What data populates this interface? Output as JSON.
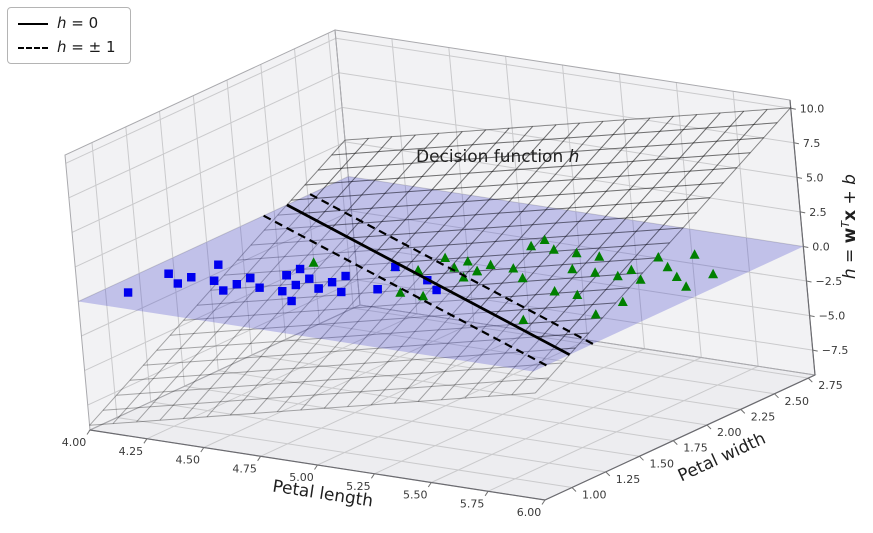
{
  "legend": {
    "items": [
      {
        "style": "solid",
        "var": "h",
        "rest": " = 0"
      },
      {
        "style": "dashed",
        "var": "h",
        "rest": " = ± 1"
      }
    ]
  },
  "annotation": {
    "prefix": "Decision function ",
    "var": "h"
  },
  "axes": {
    "x": {
      "label": "Petal length",
      "tick_labels": [
        "4.00",
        "4.25",
        "4.50",
        "4.75",
        "5.00",
        "5.25",
        "5.50",
        "5.75",
        "6.00"
      ],
      "tick_values": [
        4,
        4.25,
        4.5,
        4.75,
        5,
        5.25,
        5.5,
        5.75,
        6
      ],
      "lim": [
        4,
        6
      ]
    },
    "y": {
      "label": "Petal width",
      "tick_labels": [
        "1.00",
        "1.25",
        "1.50",
        "1.75",
        "2.00",
        "2.25",
        "2.50",
        "2.75"
      ],
      "tick_values": [
        1,
        1.25,
        1.5,
        1.75,
        2,
        2.25,
        2.5,
        2.75
      ],
      "lim": [
        0.8,
        2.8
      ]
    },
    "z": {
      "label_parts": {
        "h": "h",
        "eq": " = ",
        "w": "w",
        "sup": "T",
        "x": "x",
        "plus": " + ",
        "b": "b"
      },
      "tick_labels": [
        "−7.5",
        "−5.0",
        "−2.5",
        "0.0",
        "2.5",
        "5.0",
        "7.5",
        "10.0"
      ],
      "tick_values": [
        -7.5,
        -5,
        -2.5,
        0,
        2.5,
        5,
        7.5,
        10
      ],
      "lim": [
        -9.3,
        10.6
      ]
    }
  },
  "chart_data": {
    "type": "scatter",
    "projection": "3d",
    "title": "Decision function h",
    "xlabel": "Petal length",
    "ylabel": "Petal width",
    "zlabel": "h = w^T x + b",
    "xlim": [
      4,
      6
    ],
    "ylim": [
      0.8,
      2.8
    ],
    "zlim": [
      -9.3,
      10.6
    ],
    "grid": true,
    "legend_position": "upper left",
    "decision_surface": {
      "w": [
        3.7,
        5.8
      ],
      "b": -28.4,
      "mesh_lines": 20
    },
    "zero_plane_z": 0,
    "boundary_levels": [
      0,
      1,
      -1
    ],
    "series": [
      {
        "name": "green_triangles",
        "marker": "triangle_up",
        "color": "#008000",
        "z": 0,
        "points": [
          [
            5.1,
            1.9
          ],
          [
            5.9,
            2.1
          ],
          [
            5.6,
            1.8
          ],
          [
            5.8,
            2.2
          ],
          [
            4.5,
            1.7
          ],
          [
            5.8,
            1.8
          ],
          [
            5.1,
            2.0
          ],
          [
            5.3,
            1.9
          ],
          [
            5.5,
            2.1
          ],
          [
            5.0,
            2.0
          ],
          [
            5.1,
            2.4
          ],
          [
            5.3,
            2.3
          ],
          [
            5.5,
            1.8
          ],
          [
            5.0,
            1.5
          ],
          [
            5.7,
            2.3
          ],
          [
            4.9,
            2.0
          ],
          [
            4.9,
            1.8
          ],
          [
            5.7,
            2.1
          ],
          [
            4.8,
            1.8
          ],
          [
            4.9,
            1.8
          ],
          [
            5.6,
            2.1
          ],
          [
            5.8,
            1.6
          ],
          [
            5.6,
            2.2
          ],
          [
            5.1,
            1.5
          ],
          [
            5.6,
            1.4
          ],
          [
            5.6,
            2.4
          ],
          [
            5.5,
            1.8
          ],
          [
            4.8,
            1.8
          ],
          [
            5.4,
            2.1
          ],
          [
            5.6,
            2.4
          ],
          [
            5.1,
            2.3
          ],
          [
            5.1,
            1.9
          ],
          [
            5.9,
            2.3
          ],
          [
            5.7,
            2.5
          ],
          [
            5.2,
            2.3
          ],
          [
            5.0,
            1.9
          ],
          [
            5.2,
            2.0
          ],
          [
            5.4,
            2.3
          ],
          [
            5.1,
            1.8
          ]
        ]
      },
      {
        "name": "blue_squares",
        "marker": "square",
        "color": "#0000ee",
        "z": 0,
        "points": [
          [
            4.7,
            1.4
          ],
          [
            4.5,
            1.5
          ],
          [
            4.9,
            1.5
          ],
          [
            4.6,
            1.5
          ],
          [
            4.5,
            1.3
          ],
          [
            4.7,
            1.6
          ],
          [
            4.6,
            1.3
          ],
          [
            4.2,
            1.5
          ],
          [
            4.7,
            1.4
          ],
          [
            4.4,
            1.4
          ],
          [
            4.5,
            1.5
          ],
          [
            4.1,
            1.0
          ],
          [
            4.5,
            1.5
          ],
          [
            4.8,
            1.8
          ],
          [
            4.9,
            1.5
          ],
          [
            4.7,
            1.2
          ],
          [
            4.3,
            1.3
          ],
          [
            4.4,
            1.4
          ],
          [
            4.8,
            1.4
          ],
          [
            5.0,
            1.7
          ],
          [
            4.5,
            1.5
          ],
          [
            5.1,
            1.6
          ],
          [
            4.5,
            1.5
          ],
          [
            4.5,
            1.6
          ],
          [
            4.7,
            1.5
          ],
          [
            4.4,
            1.3
          ],
          [
            4.1,
            1.3
          ],
          [
            4.4,
            1.2
          ],
          [
            4.6,
            1.4
          ],
          [
            4.2,
            1.3
          ],
          [
            4.2,
            1.2
          ],
          [
            4.2,
            1.3
          ],
          [
            4.3,
            1.3
          ],
          [
            4.1,
            1.3
          ]
        ]
      }
    ],
    "colors": {
      "zero_plane": "#4040cc",
      "wireframe": "#000000",
      "boundary": "#000000",
      "pane": "#f2f2f4",
      "pane_grid": "#cacacc"
    }
  }
}
